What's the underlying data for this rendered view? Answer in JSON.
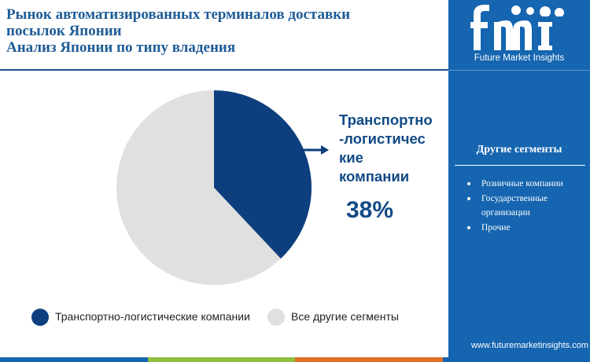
{
  "header": {
    "title_lines": [
      "Рынок автоматизированных терминалов доставки",
      "посылок Японии",
      "Анализ Японии по типу владения"
    ]
  },
  "logo": {
    "letters": "fmi",
    "subtitle": "Future Market Insights"
  },
  "sidebar": {
    "heading": "Другие сегменты",
    "items": [
      "Розничные компании",
      "Государственные организации",
      "Прочие"
    ],
    "website": "www.futuremarketinsights.com"
  },
  "callout": {
    "label_lines": [
      "Транспортно",
      "-логистичес",
      "кие",
      "компании"
    ],
    "value": "38%"
  },
  "colors": {
    "primary": "#0d3f7e",
    "other": "#e0e0e0",
    "sidebar": "#1565b0",
    "title": "#1f5c97",
    "bar": [
      "#1565b0",
      "#8fbf3f",
      "#e0702a",
      "#1565b0"
    ]
  },
  "chart_data": {
    "type": "pie",
    "title": "",
    "slices": [
      {
        "name": "Транспортно-логистические компании",
        "value": 38
      },
      {
        "name": "Все другие сегменты",
        "value": 62
      }
    ],
    "legend": "bottom"
  }
}
